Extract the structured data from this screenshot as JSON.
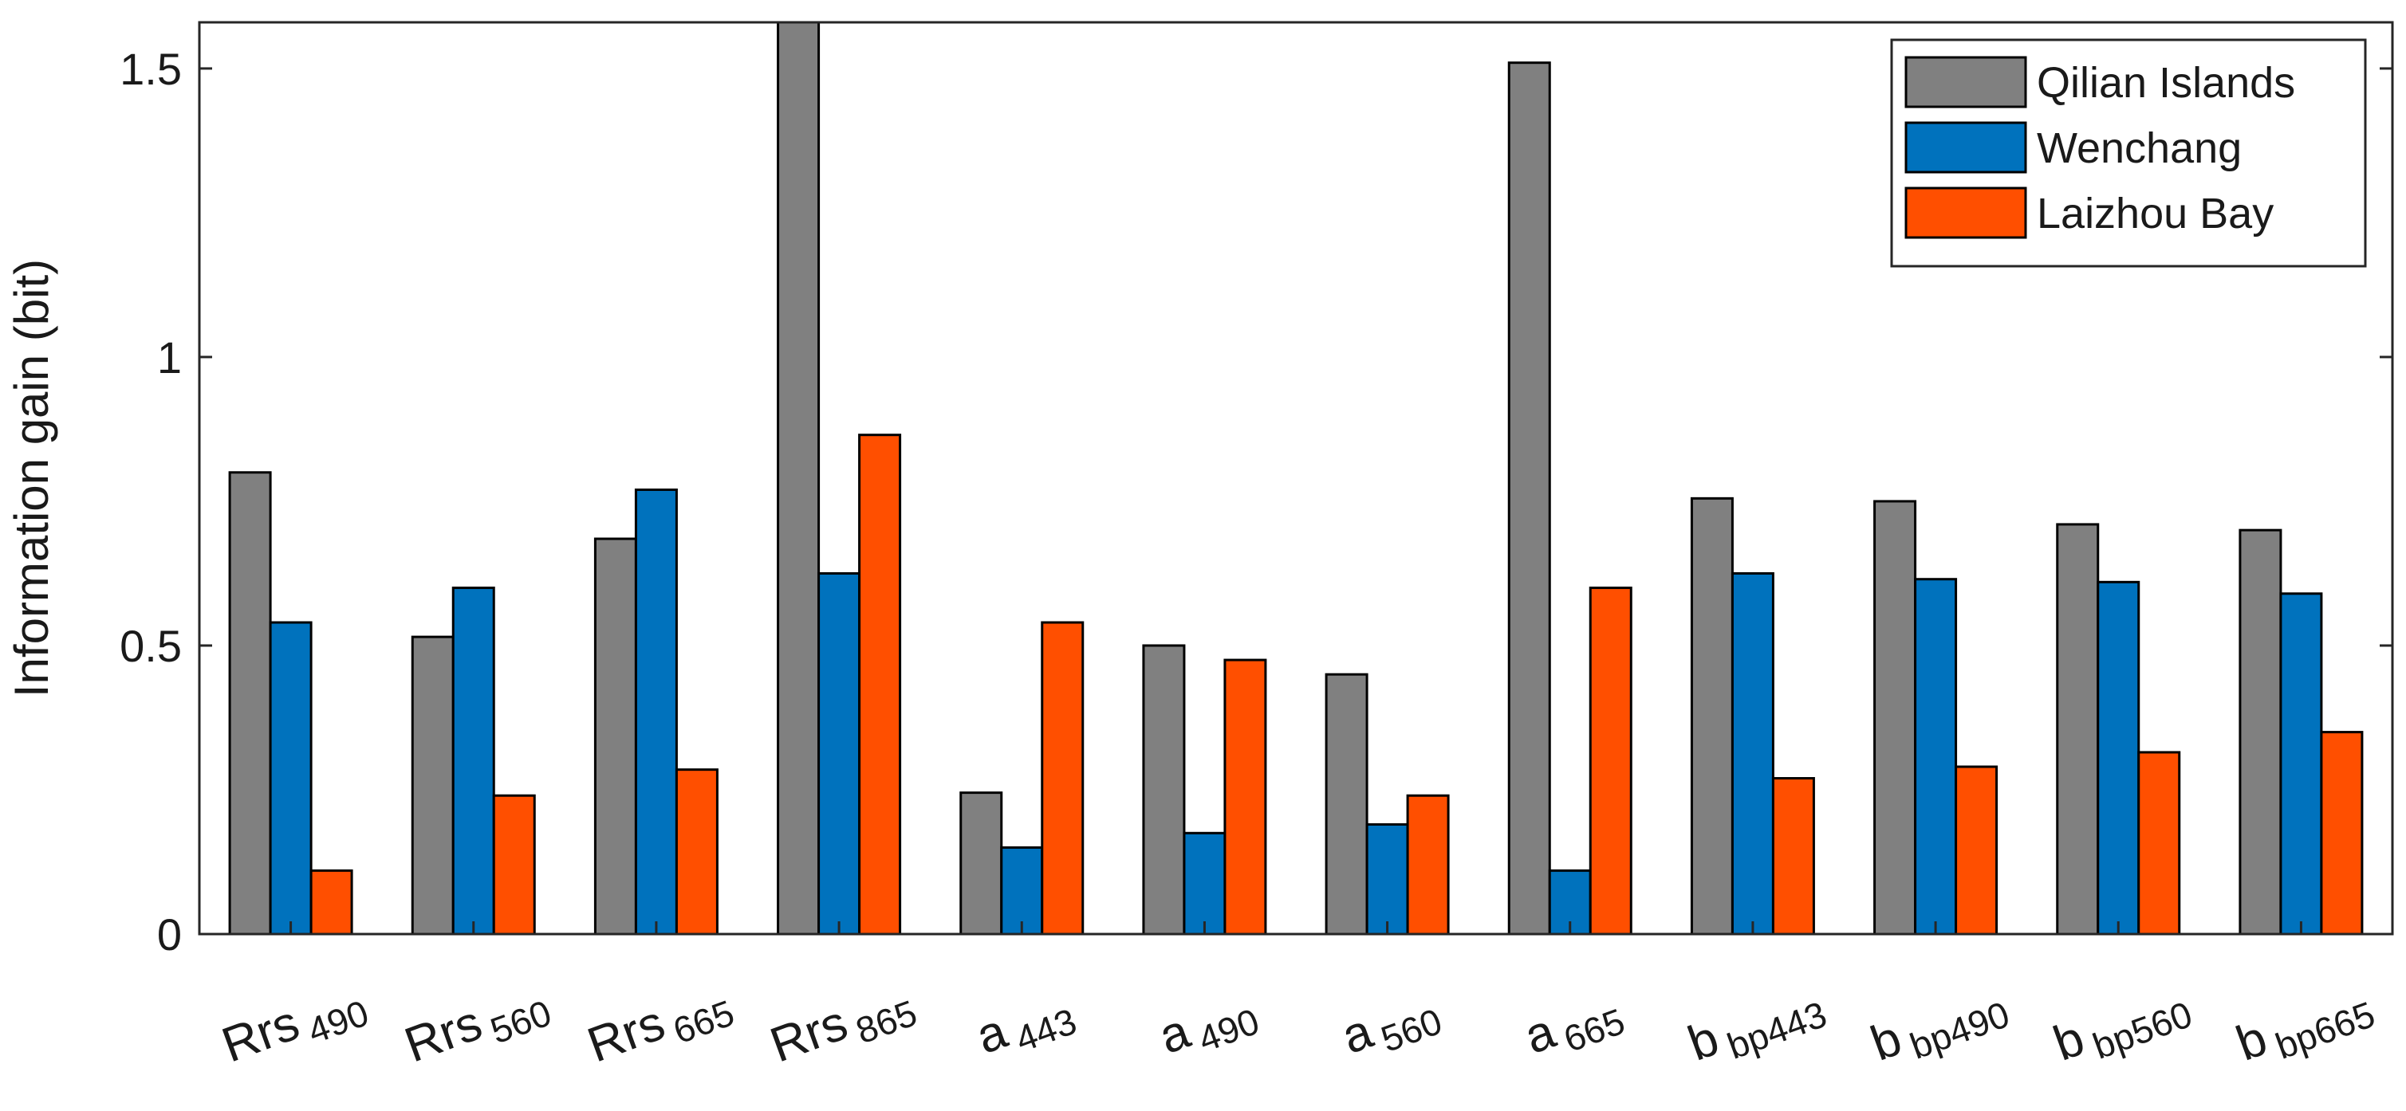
{
  "chart_data": {
    "type": "bar",
    "title": "",
    "xlabel": "",
    "ylabel": "Information gain (bit)",
    "ylim": [
      0,
      1.58
    ],
    "yticks": [
      {
        "value": 0,
        "label": "0"
      },
      {
        "value": 0.5,
        "label": "0.5"
      },
      {
        "value": 1,
        "label": "1"
      },
      {
        "value": 1.5,
        "label": "1.5"
      }
    ],
    "grid": false,
    "legend_position": "top-right",
    "categories": [
      {
        "main": "Rrs",
        "sub": "490"
      },
      {
        "main": "Rrs",
        "sub": "560"
      },
      {
        "main": "Rrs",
        "sub": "665"
      },
      {
        "main": "Rrs",
        "sub": "865"
      },
      {
        "main": "a",
        "sub": "443"
      },
      {
        "main": "a",
        "sub": "490"
      },
      {
        "main": "a",
        "sub": "560"
      },
      {
        "main": "a",
        "sub": "665"
      },
      {
        "main": "b",
        "sub": "bp443"
      },
      {
        "main": "b",
        "sub": "bp490"
      },
      {
        "main": "b",
        "sub": "bp560"
      },
      {
        "main": "b",
        "sub": "bp665"
      }
    ],
    "series": [
      {
        "name": "Qilian Islands",
        "color": "#808080",
        "values": [
          0.8,
          0.515,
          0.685,
          1.58,
          0.245,
          0.5,
          0.45,
          1.51,
          0.755,
          0.75,
          0.71,
          0.7
        ]
      },
      {
        "name": "Wenchang",
        "color": "#0072BD",
        "values": [
          0.54,
          0.6,
          0.77,
          0.625,
          0.15,
          0.175,
          0.19,
          0.11,
          0.625,
          0.615,
          0.61,
          0.59
        ]
      },
      {
        "name": "Laizhou Bay",
        "color": "#FF4F00",
        "values": [
          0.11,
          0.24,
          0.285,
          0.865,
          0.54,
          0.475,
          0.24,
          0.6,
          0.27,
          0.29,
          0.315,
          0.35
        ]
      }
    ]
  }
}
